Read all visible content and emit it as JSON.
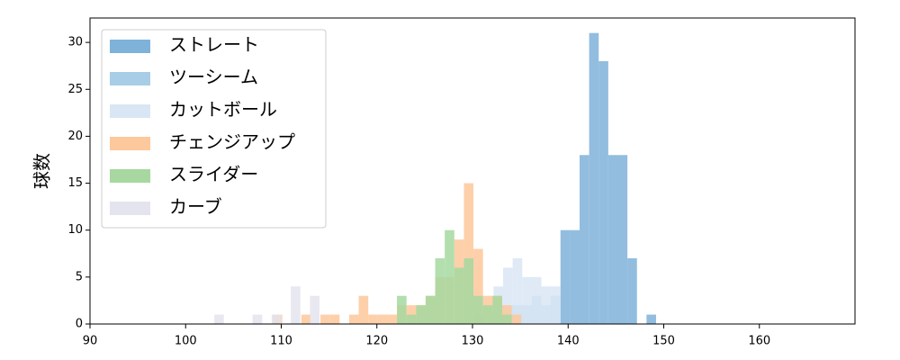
{
  "chart_data": {
    "type": "histogram",
    "ylabel": "球数",
    "xlim": [
      90,
      170
    ],
    "ylim": [
      0,
      32.6
    ],
    "xticks": [
      90,
      100,
      110,
      120,
      130,
      140,
      150,
      160
    ],
    "yticks": [
      0,
      5,
      10,
      15,
      20,
      25,
      30
    ],
    "legend": "upper left",
    "series": [
      {
        "name": "ストレート",
        "color": "#7fb2d9",
        "bins": [
          139.2,
          140.2,
          141.2,
          142.2,
          143.2,
          144.2,
          145.2,
          146.2,
          147.2,
          148.2,
          149.2
        ],
        "values": [
          10,
          10,
          18,
          31,
          28,
          18,
          18,
          7,
          0,
          1
        ]
      },
      {
        "name": "ツーシーム",
        "color": "#a8cde6",
        "bins": [
          130.2,
          131.2,
          132.2,
          133.2,
          134.2,
          135.2,
          136.2,
          137.2,
          138.2,
          139.2
        ],
        "values": [
          1,
          1,
          2,
          2,
          2,
          2,
          3,
          2,
          3
        ]
      },
      {
        "name": "カットボール",
        "color": "#d9e6f4",
        "bins": [
          131.2,
          132.2,
          133.2,
          134.2,
          135.2,
          136.2,
          137.2,
          138.2,
          139.2
        ],
        "values": [
          2,
          4,
          6,
          7,
          5,
          5,
          4,
          4
        ]
      },
      {
        "name": "チェンジアップ",
        "color": "#fdc89b",
        "bins": [
          109.1,
          110.1,
          111.1,
          112.1,
          113.1,
          114.1,
          115.1,
          116.1,
          117.1,
          118.1,
          119.1,
          120.1,
          121.1,
          122.1,
          123.1,
          124.1,
          125.1,
          126.1,
          127.1,
          128.1,
          129.1,
          130.1,
          131.1,
          132.1,
          133.1,
          134.1,
          135.1
        ],
        "values": [
          1,
          0,
          0,
          1,
          0,
          1,
          1,
          0,
          1,
          3,
          1,
          1,
          1,
          2,
          2,
          2,
          3,
          5,
          5,
          9,
          15,
          8,
          3,
          3,
          2,
          1
        ]
      },
      {
        "name": "スライダー",
        "color": "#a6d8a0",
        "bins": [
          122.1,
          123.1,
          124.1,
          125.1,
          126.1,
          127.1,
          128.1,
          129.1,
          130.1,
          131.1,
          132.1,
          133.1,
          134.1
        ],
        "values": [
          3,
          1,
          2,
          3,
          7,
          10,
          6,
          7,
          3,
          2,
          3,
          1
        ]
      },
      {
        "name": "カーブ",
        "color": "#e4e4ef",
        "bins": [
          103,
          104,
          105,
          106,
          107,
          108,
          109,
          110,
          111,
          112,
          113,
          114
        ],
        "values": [
          1,
          0,
          0,
          0,
          1,
          0,
          1,
          0,
          4,
          0,
          3
        ]
      }
    ]
  }
}
